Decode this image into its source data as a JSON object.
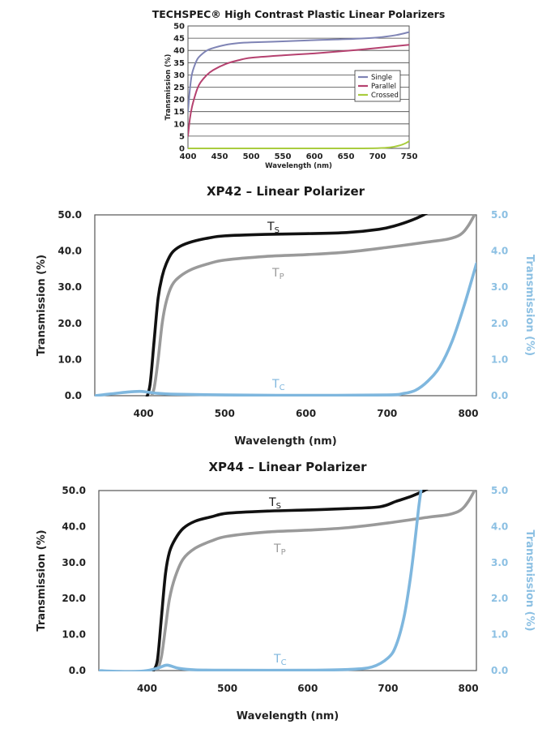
{
  "chart_data": [
    {
      "type": "line",
      "title": "TECHSPEC® High Contrast Plastic Linear Polarizers",
      "xlabel": "Wavelength (nm)",
      "ylabel": "Transmission (%)",
      "xlim": [
        400,
        750
      ],
      "ylim": [
        0,
        50
      ],
      "xticks": [
        400,
        450,
        500,
        550,
        600,
        650,
        700,
        750
      ],
      "yticks": [
        0,
        5,
        10,
        15,
        20,
        25,
        30,
        35,
        40,
        45,
        50
      ],
      "grid": "horizontal",
      "legend": "inside-right",
      "series": [
        {
          "name": "Single",
          "color": "#7f84b5",
          "x": [
            400,
            403,
            406,
            410,
            415,
            420,
            430,
            440,
            460,
            480,
            500,
            550,
            600,
            650,
            700,
            730,
            750
          ],
          "y": [
            15,
            24,
            30,
            33.5,
            36.5,
            38,
            40,
            41,
            42.3,
            43,
            43.3,
            43.7,
            44.2,
            44.6,
            45.3,
            46.3,
            47.5
          ]
        },
        {
          "name": "Parallel",
          "color": "#b5416f",
          "x": [
            400,
            403,
            406,
            410,
            415,
            420,
            430,
            440,
            460,
            480,
            500,
            550,
            600,
            650,
            700,
            730,
            750
          ],
          "y": [
            5,
            12,
            16.5,
            20.5,
            24.5,
            27,
            30,
            32,
            34.5,
            36,
            37,
            38,
            38.8,
            39.8,
            41,
            41.8,
            42.3
          ]
        },
        {
          "name": "Crossed",
          "color": "#a9cc3e",
          "x": [
            400,
            500,
            600,
            650,
            700,
            720,
            735,
            745,
            750
          ],
          "y": [
            0,
            0,
            0,
            0,
            0.1,
            0.4,
            1.2,
            2.2,
            3
          ]
        }
      ]
    },
    {
      "type": "line",
      "title": "XP42 – Linear Polarizer",
      "xlabel": "Wavelength (nm)",
      "ylabel": "Transmission (%)",
      "y2label": "Transmission (%)",
      "xlim": [
        340,
        810
      ],
      "ylim": [
        0,
        50
      ],
      "y2lim": [
        0,
        5
      ],
      "xticks": [
        400,
        500,
        600,
        700,
        800
      ],
      "yticks": [
        0,
        10,
        20,
        30,
        40,
        50
      ],
      "yticklabels": [
        "0.0",
        "10.0",
        "20.0",
        "30.0",
        "40.0",
        "50.0"
      ],
      "y2ticks": [
        0,
        1,
        2,
        3,
        4,
        5
      ],
      "y2ticklabels": [
        "0.0",
        "1.0",
        "2.0",
        "3.0",
        "4.0",
        "5.0"
      ],
      "series": [
        {
          "name": "Ts",
          "label_sub": "S",
          "color": "#111111",
          "axis": "left",
          "x": [
            403,
            408,
            413,
            418,
            423,
            428,
            435,
            445,
            460,
            480,
            500,
            550,
            600,
            650,
            690,
            710,
            730,
            745,
            752
          ],
          "y": [
            -1,
            3,
            15,
            27,
            33,
            36.5,
            39.5,
            41.3,
            42.6,
            43.6,
            44.2,
            44.6,
            44.8,
            45.1,
            46,
            47,
            48.5,
            50,
            51
          ]
        },
        {
          "name": "Tp",
          "label_sub": "P",
          "color": "#9a9a9a",
          "axis": "left",
          "x": [
            408,
            413,
            418,
            423,
            428,
            435,
            445,
            460,
            480,
            500,
            550,
            600,
            650,
            700,
            750,
            775,
            790,
            800,
            810
          ],
          "y": [
            -1,
            2,
            10,
            20,
            26,
            30.5,
            33,
            35,
            36.5,
            37.5,
            38.5,
            39,
            39.7,
            41,
            42.5,
            43.3,
            44.5,
            47,
            51
          ]
        },
        {
          "name": "Tc",
          "label_sub": "C",
          "color": "#7fb7de",
          "axis": "right",
          "x": [
            340,
            360,
            380,
            395,
            405,
            415,
            440,
            500,
            600,
            700,
            720,
            735,
            750,
            765,
            780,
            795,
            810
          ],
          "y": [
            0,
            0.05,
            0.1,
            0.12,
            0.1,
            0.07,
            0.04,
            0.02,
            0.01,
            0.02,
            0.06,
            0.15,
            0.4,
            0.8,
            1.5,
            2.5,
            3.65
          ]
        }
      ]
    },
    {
      "type": "line",
      "title": "XP44 – Linear Polarizer",
      "xlabel": "Wavelength (nm)",
      "ylabel": "Transmission (%)",
      "y2label": "Transmission (%)",
      "xlim": [
        340,
        810
      ],
      "ylim": [
        0,
        50
      ],
      "y2lim": [
        0,
        5
      ],
      "xticks": [
        400,
        500,
        600,
        700,
        800
      ],
      "yticks": [
        0,
        10,
        20,
        30,
        40,
        50
      ],
      "yticklabels": [
        "0.0",
        "10.0",
        "20.0",
        "30.0",
        "40.0",
        "50.0"
      ],
      "y2ticks": [
        0,
        1,
        2,
        3,
        4,
        5
      ],
      "y2ticklabels": [
        "0.0",
        "1.0",
        "2.0",
        "3.0",
        "4.0",
        "5.0"
      ],
      "series": [
        {
          "name": "Ts",
          "label_sub": "S",
          "color": "#111111",
          "axis": "left",
          "x": [
            408,
            413,
            418,
            423,
            428,
            435,
            445,
            460,
            480,
            500,
            550,
            600,
            650,
            690,
            710,
            730,
            745,
            752
          ],
          "y": [
            0,
            3,
            15,
            27,
            33,
            36.5,
            39.5,
            41.5,
            42.7,
            43.7,
            44.3,
            44.6,
            45,
            45.5,
            47,
            48.5,
            50,
            51
          ]
        },
        {
          "name": "Tp",
          "label_sub": "P",
          "color": "#9a9a9a",
          "axis": "left",
          "x": [
            413,
            418,
            423,
            428,
            435,
            445,
            460,
            480,
            500,
            550,
            600,
            650,
            700,
            750,
            775,
            790,
            800,
            810
          ],
          "y": [
            0,
            4,
            12,
            20,
            26,
            31,
            34,
            36,
            37.3,
            38.5,
            39,
            39.7,
            41,
            42.6,
            43.3,
            44.5,
            47,
            51
          ]
        },
        {
          "name": "Tc",
          "label_sub": "C",
          "color": "#7fb7de",
          "axis": "right",
          "x": [
            340,
            360,
            380,
            400,
            415,
            425,
            440,
            460,
            500,
            600,
            650,
            680,
            700,
            710,
            720,
            728,
            734,
            738,
            741
          ],
          "y": [
            0,
            -0.02,
            -0.03,
            0,
            0.08,
            0.15,
            0.06,
            0.02,
            0.01,
            0.01,
            0.03,
            0.1,
            0.35,
            0.7,
            1.5,
            2.6,
            3.7,
            4.5,
            5
          ]
        }
      ]
    }
  ]
}
